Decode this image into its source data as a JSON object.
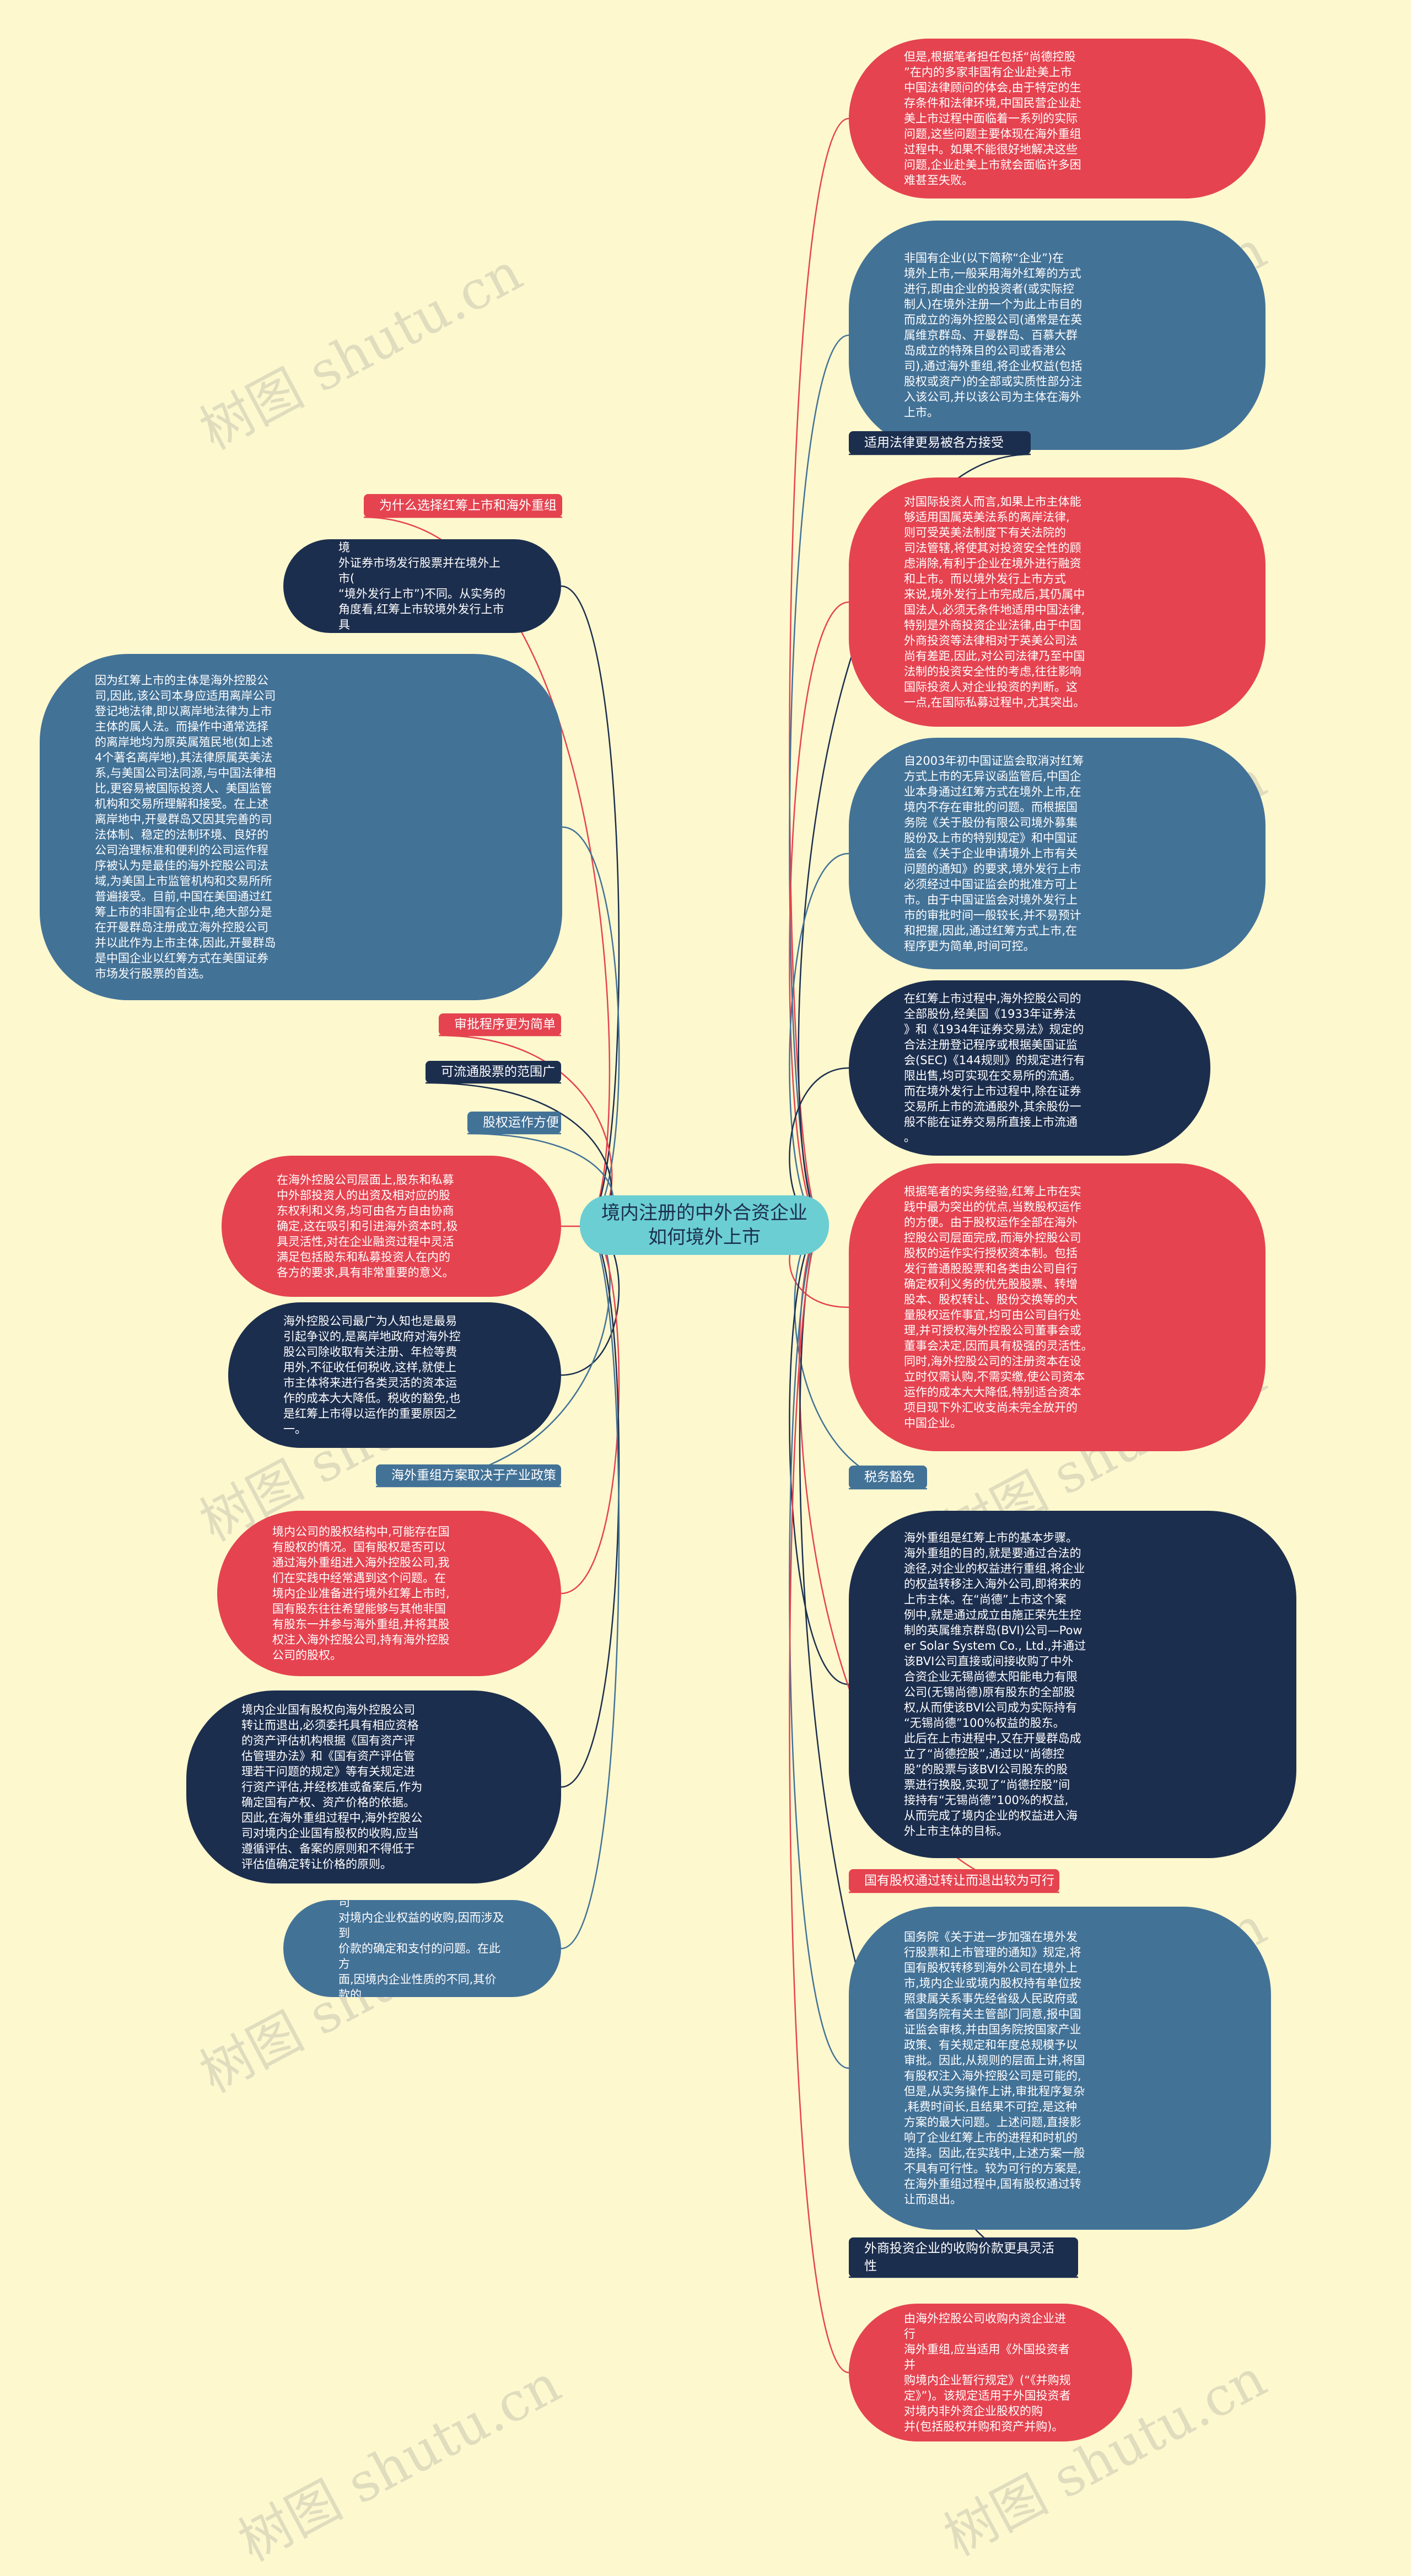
{
  "center": {
    "text": "境内注册的中外合资企业\n如何境外上市"
  },
  "left": [
    {
      "id": "L1",
      "kind": "lbl",
      "color": "red",
      "text": "为什么选择红筹上市和海外重组"
    },
    {
      "id": "L2",
      "kind": "bubble",
      "color": "navy",
      "text": "红筹上市与国内股份有限公司在境\n外证券市场发行股票并在境外上市(\n“境外发行上市”)不同。从实务的\n角度看,红筹上市较境外发行上市具\n有更多优点。"
    },
    {
      "id": "L3",
      "kind": "bubble",
      "color": "steel",
      "text": "因为红筹上市的主体是海外控股公\n司,因此,该公司本身应适用离岸公司\n登记地法律,即以离岸地法律为上市\n主体的属人法。而操作中通常选择\n的离岸地均为原英属殖民地(如上述\n4个著名离岸地),其法律原属英美法\n系,与美国公司法同源,与中国法律相\n比,更容易被国际投资人、美国监管\n机构和交易所理解和接受。在上述\n离岸地中,开曼群岛又因其完善的司\n法体制、稳定的法制环境、良好的\n公司治理标准和便利的公司运作程\n序被认为是最佳的海外控股公司法\n域,为美国上市监管机构和交易所所\n普遍接受。目前,中国在美国通过红\n筹上市的非国有企业中,绝大部分是\n在开曼群岛注册成立海外控股公司\n并以此作为上市主体,因此,开曼群岛\n是中国企业以红筹方式在美国证券\n市场发行股票的首选。"
    },
    {
      "id": "L4",
      "kind": "lbl",
      "color": "red",
      "text": "审批程序更为简单"
    },
    {
      "id": "L5",
      "kind": "lbl",
      "color": "navy",
      "text": "可流通股票的范围广"
    },
    {
      "id": "L6",
      "kind": "lbl",
      "color": "steel",
      "text": "股权运作方便"
    },
    {
      "id": "L7",
      "kind": "bubble",
      "color": "red",
      "text": "在海外控股公司层面上,股东和私募\n中外部投资人的出资及相对应的股\n东权利和义务,均可由各方自由协商\n确定,这在吸引和引进海外资本时,极\n具灵活性,对在企业融资过程中灵活\n满足包括股东和私募投资人在内的\n各方的要求,具有非常重要的意义。"
    },
    {
      "id": "L8",
      "kind": "bubble",
      "color": "navy",
      "text": "海外控股公司最广为人知也是最易\n引起争议的,是离岸地政府对海外控\n股公司除收取有关注册、年检等费\n用外,不征收任何税收,这样,就使上\n市主体将来进行各类灵活的资本运\n作的成本大大降低。税收的豁免,也\n是红筹上市得以运作的重要原因之\n一。"
    },
    {
      "id": "L9",
      "kind": "lbl",
      "color": "steel",
      "text": "海外重组方案取决于产业政策"
    },
    {
      "id": "L10",
      "kind": "bubble",
      "color": "red",
      "text": "境内公司的股权结构中,可能存在国\n有股权的情况。国有股权是否可以\n通过海外重组进入海外控股公司,我\n们在实践中经常遇到这个问题。在\n境内企业准备进行境外红筹上市时,\n国有股东往往希望能够与其他非国\n有股东一并参与海外重组,并将其股\n权注入海外控股公司,持有海外控股\n公司的股权。"
    },
    {
      "id": "L11",
      "kind": "bubble",
      "color": "navy",
      "text": "境内企业国有股权向海外控股公司\n转让而退出,必须委托具有相应资格\n的资产评估机构根据《国有资产评\n估管理办法》和《国有资产评估管\n理若干问题的规定》等有关规定进\n行资产评估,并经核准或备案后,作为\n确定国有产权、资产价格的依据。\n因此,在海外重组过程中,海外控股公\n司对境内企业国有股权的收购,应当\n遵循评估、备案的原则和不得低于\n评估值确定转让价格的原则。"
    },
    {
      "id": "L12",
      "kind": "bubble",
      "color": "steel",
      "text": "海外重组过程,涉及到海外控股公司\n对境内企业权益的收购,因而涉及到\n价款的确定和支付的问题。在此方\n面,因境内企业性质的不同,其价款的\n确定和支付有所不同。"
    }
  ],
  "right": [
    {
      "id": "R1",
      "kind": "bubble",
      "color": "red",
      "text": "但是,根据笔者担任包括“尚德控股\n”在内的多家非国有企业赴美上市\n中国法律顾问的体会,由于特定的生\n存条件和法律环境,中国民营企业赴\n美上市过程中面临着一系列的实际\n问题,这些问题主要体现在海外重组\n过程中。如果不能很好地解决这些\n问题,企业赴美上市就会面临许多困\n难甚至失败。"
    },
    {
      "id": "R2",
      "kind": "bubble",
      "color": "steel",
      "text": "非国有企业(以下简称“企业”)在\n境外上市,一般采用海外红筹的方式\n进行,即由企业的投资者(或实际控\n制人)在境外注册一个为此上市目的\n而成立的海外控股公司(通常是在英\n属维京群岛、开曼群岛、百慕大群\n岛成立的特殊目的公司或香港公\n司),通过海外重组,将企业权益(包括\n股权或资产)的全部或实质性部分注\n入该公司,并以该公司为主体在海外\n上市。"
    },
    {
      "id": "R3",
      "kind": "lbl",
      "color": "navy",
      "text": "适用法律更易被各方接受"
    },
    {
      "id": "R4",
      "kind": "bubble",
      "color": "red",
      "text": "对国际投资人而言,如果上市主体能\n够适用国属英美法系的离岸法律,\n则可受英美法制度下有关法院的\n司法管辖,将使其对投资安全性的顾\n虑消除,有利于企业在境外进行融资\n和上市。而以境外发行上市方式\n来说,境外发行上市完成后,其仍属中\n国法人,必须无条件地适用中国法律,\n特别是外商投资企业法律,由于中国\n外商投资等法律相对于英美公司法\n尚有差距,因此,对公司法律乃至中国\n法制的投资安全性的考虑,往往影响\n国际投资人对企业投资的判断。这\n一点,在国际私募过程中,尤其突出。"
    },
    {
      "id": "R5",
      "kind": "bubble",
      "color": "steel",
      "text": "自2003年初中国证监会取消对红筹\n方式上市的无异议函监管后,中国企\n业本身通过红筹方式在境外上市,在\n境内不存在审批的问题。而根据国\n务院《关于股份有限公司境外募集\n股份及上市的特别规定》和中国证\n监会《关于企业申请境外上市有关\n问题的通知》的要求,境外发行上市\n必须经过中国证监会的批准方可上\n市。由于中国证监会对境外发行上\n市的审批时间一般较长,并不易预计\n和把握,因此,通过红筹方式上市,在\n程序更为简单,时间可控。"
    },
    {
      "id": "R6",
      "kind": "bubble",
      "color": "navy",
      "text": "在红筹上市过程中,海外控股公司的\n全部股份,经美国《1933年证券法\n》和《1934年证券交易法》规定的\n合法注册登记程序或根据美国证监\n会(SEC)《144规则》的规定进行有\n限出售,均可实现在交易所的流通。\n而在境外发行上市过程中,除在证券\n交易所上市的流通股外,其余股份一\n般不能在证券交易所直接上市流通\n。"
    },
    {
      "id": "R7",
      "kind": "bubble",
      "color": "red",
      "text": "根据笔者的实务经验,红筹上市在实\n践中最为突出的优点,当数股权运作\n的方便。由于股权运作全部在海外\n控股公司层面完成,而海外控股公司\n股权的运作实行授权资本制。包括\n发行普通股股票和各类由公司自行\n确定权利义务的优先股股票、转增\n股本、股权转让、股份交换等的大\n量股权运作事宜,均可由公司自行处\n理,并可授权海外控股公司董事会或\n董事会决定,因而具有极强的灵活性。\n同时,海外控股公司的注册资本在设\n立时仅需认购,不需实缴,使公司资本\n运作的成本大大降低,特别适合资本\n项目现下外汇收支尚未完全放开的\n中国企业。"
    },
    {
      "id": "R8",
      "kind": "lbl",
      "color": "steel",
      "text": "税务豁免"
    },
    {
      "id": "R9",
      "kind": "bubble",
      "color": "navy",
      "text": "海外重组是红筹上市的基本步骤。\n海外重组的目的,就是要通过合法的\n途径,对企业的权益进行重组,将企业\n的权益转移注入海外公司,即将来的\n上市主体。在“尚德”上市这个案\n例中,就是通过成立由施正荣先生控\n制的英属维京群岛(BVI)公司—Pow\ner Solar System Co., Ltd.,并通过\n该BVI公司直接或间接收购了中外\n合资企业无锡尚德太阳能电力有限\n公司(无锡尚德)原有股东的全部股\n权,从而使该BVI公司成为实际持有\n“无锡尚德”100%权益的股东。\n此后在上市进程中,又在开曼群岛成\n立了“尚德控股”,通过以“尚德控\n股”的股票与该BVI公司股东的股\n票进行换股,实现了“尚德控股”间\n接持有“无锡尚德”100%的权益,\n从而完成了境内企业的权益进入海\n外上市主体的目标。"
    },
    {
      "id": "R10",
      "kind": "lbl",
      "color": "red",
      "text": "国有股权通过转让而退出较为可行"
    },
    {
      "id": "R11",
      "kind": "bubble",
      "color": "steel",
      "text": "国务院《关于进一步加强在境外发\n行股票和上市管理的通知》规定,将\n国有股权转移到海外公司在境外上\n市,境内企业或境内股权持有单位按\n照隶属关系事先经省级人民政府或\n者国务院有关主管部门同意,报中国\n证监会审核,并由国务院按国家产业\n政策、有关规定和年度总规模予以\n审批。因此,从规则的层面上讲,将国\n有股权注入海外控股公司是可能的,\n但是,从实务操作上讲,审批程序复杂\n,耗费时间长,且结果不可控,是这种\n方案的最大问题。上述问题,直接影\n响了企业红筹上市的进程和时机的\n选择。因此,在实践中,上述方案一般\n不具有可行性。较为可行的方案是,\n在海外重组过程中,国有股权通过转\n让而退出。"
    },
    {
      "id": "R12",
      "kind": "lbl",
      "color": "navy",
      "two": true,
      "text": "外商投资企业的收购价款更具灵活\n性"
    },
    {
      "id": "R13",
      "kind": "bubble",
      "color": "red",
      "text": "由海外控股公司收购内资企业进行\n海外重组,应当适用《外国投资者并\n购境内企业暂行规定》(“《并购规\n定》”)。该规定适用于外国投资者\n对境内非外资企业股权的购\n并(包括股权并购和资产并购)。"
    }
  ],
  "watermarks": [
    "树图 shutu.cn",
    "树图 shutu.cn",
    "树图 shutu.cn",
    "树图 shutu.cn",
    "树图 shutu.cn",
    "树图 shutu.cn",
    "树图 shutu.cn",
    "树图 shutu.cn",
    "树图 shutu.cn",
    "树图 shutu.cn"
  ],
  "colors": {
    "background": "#fdf8ce",
    "red": "#e54350",
    "navy": "#1c2e4e",
    "steel": "#437297",
    "center": "#6bced2"
  }
}
